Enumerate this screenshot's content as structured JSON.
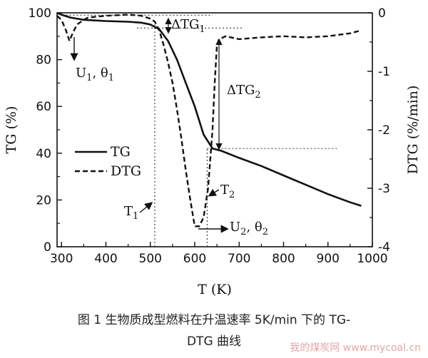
{
  "chart_data": {
    "type": "line",
    "xlabel": "T (K)",
    "ylabel_left": "TG (%)",
    "ylabel_right": "DTG  (%/min)",
    "xlim": [
      290,
      1000
    ],
    "ylim_left": [
      0,
      100
    ],
    "ylim_right": [
      -4,
      0
    ],
    "xticks": [
      "300",
      "400",
      "500",
      "600",
      "700",
      "800",
      "900",
      "1000"
    ],
    "yticks_left": [
      "0",
      "20",
      "40",
      "60",
      "80",
      "100"
    ],
    "yticks_right": [
      "-4",
      "-3",
      "-2",
      "-1",
      "0"
    ],
    "legend": {
      "placement": "middle-left",
      "entries": [
        "TG",
        "DTG"
      ]
    },
    "series": [
      {
        "name": "TG",
        "axis": "left",
        "x": [
          290,
          300,
          320,
          350,
          400,
          450,
          480,
          500,
          520,
          540,
          560,
          580,
          600,
          620,
          640,
          660,
          700,
          750,
          800,
          850,
          900,
          950,
          975
        ],
        "y": [
          100,
          99.2,
          98,
          97,
          96.5,
          96.2,
          95.8,
          95,
          93,
          88,
          80,
          70,
          60,
          48,
          42,
          41,
          38,
          34.5,
          30.5,
          26.5,
          22.5,
          19,
          17.5
        ]
      },
      {
        "name": "DTG",
        "axis": "right",
        "x": [
          290,
          300,
          310,
          318,
          325,
          335,
          350,
          360,
          400,
          450,
          480,
          500,
          510,
          520,
          530,
          540,
          550,
          560,
          570,
          580,
          590,
          600,
          610,
          620,
          630,
          640,
          645,
          650,
          655,
          670,
          700,
          750,
          800,
          850,
          900,
          950,
          975
        ],
        "y": [
          -0.05,
          -0.12,
          -0.3,
          -0.48,
          -0.35,
          -0.2,
          -0.12,
          -0.08,
          -0.05,
          -0.03,
          -0.05,
          -0.1,
          -0.15,
          -0.3,
          -0.55,
          -0.85,
          -1.2,
          -1.65,
          -2.15,
          -2.7,
          -3.2,
          -3.65,
          -3.65,
          -3.5,
          -3.0,
          -2.0,
          -1.2,
          -0.55,
          -0.45,
          -0.4,
          -0.45,
          -0.42,
          -0.4,
          -0.42,
          -0.4,
          -0.35,
          -0.3
        ]
      }
    ],
    "annotations": [
      {
        "id": "u1",
        "text": "U",
        "sub": "1",
        "rest": ", θ",
        "sub2": "1"
      },
      {
        "id": "u2",
        "text": "U",
        "sub": "2",
        "rest": ", θ",
        "sub2": "2"
      },
      {
        "id": "t1",
        "text": "T",
        "sub": "1"
      },
      {
        "id": "t2",
        "text": "T",
        "sub": "2"
      },
      {
        "id": "dtg1",
        "text": "ΔTG",
        "sub": "1"
      },
      {
        "id": "dtg2",
        "text": "ΔTG",
        "sub": "2"
      }
    ]
  },
  "caption": {
    "line1": "图 1  生物质成型燃料在升温速率 5K/min 下的 TG-",
    "line2": "DTG 曲线"
  },
  "watermark": "我的煤炭网 www.mycoal.cn"
}
